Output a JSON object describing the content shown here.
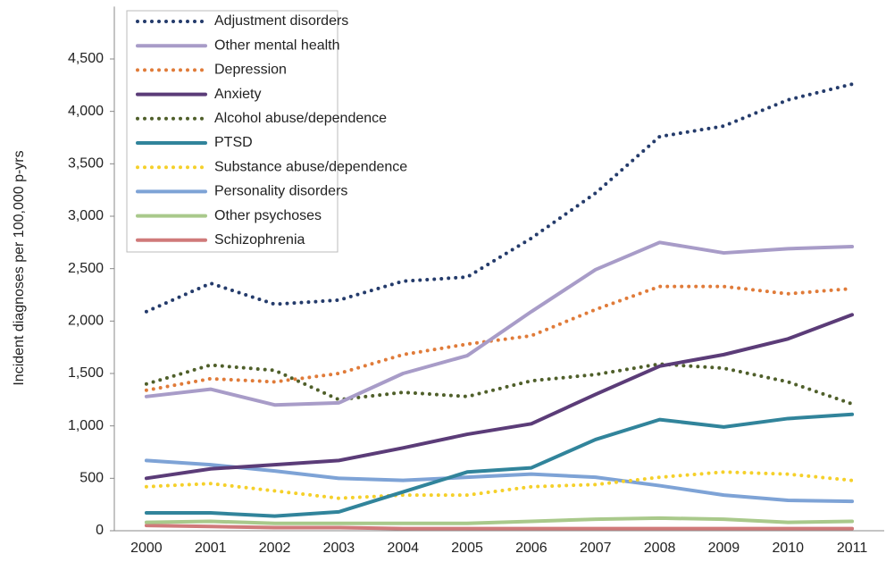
{
  "chart_data": {
    "type": "line",
    "y_label": "Incident diagnoses per 100,000 p-yrs",
    "categories": [
      "2000",
      "2001",
      "2002",
      "2003",
      "2004",
      "2005",
      "2006",
      "2007",
      "2008",
      "2009",
      "2010",
      "2011"
    ],
    "ylim": [
      0,
      5000
    ],
    "yticks": [
      0,
      500,
      {
        "value": 1000,
        "label": "1,000"
      },
      {
        "value": 1500,
        "label": "1,500"
      },
      {
        "value": 2000,
        "label": "2,000"
      },
      {
        "value": 2500,
        "label": "2,500"
      },
      {
        "value": 3000,
        "label": "3,000"
      },
      {
        "value": 3500,
        "label": "3,500"
      },
      {
        "value": 4000,
        "label": "4,000"
      },
      {
        "value": 4500,
        "label": "4,500"
      }
    ],
    "series": [
      {
        "name": "Adjustment disorders",
        "color": "#243b6b",
        "style": "dotted",
        "values": [
          2090,
          2360,
          2160,
          2200,
          2380,
          2420,
          2790,
          3220,
          3760,
          3860,
          4110,
          4260
        ]
      },
      {
        "name": "Other mental health",
        "color": "#a89cc8",
        "style": "solid",
        "values": [
          1280,
          1350,
          1200,
          1220,
          1500,
          1670,
          2090,
          2490,
          2750,
          2650,
          2690,
          2710
        ]
      },
      {
        "name": "Depression",
        "color": "#e07b39",
        "style": "dotted",
        "values": [
          1340,
          1450,
          1420,
          1500,
          1680,
          1780,
          1860,
          2110,
          2330,
          2330,
          2260,
          2310
        ]
      },
      {
        "name": "Anxiety",
        "color": "#5b3c78",
        "style": "solid",
        "values": [
          500,
          590,
          630,
          670,
          790,
          920,
          1020,
          1300,
          1570,
          1680,
          1830,
          2060
        ]
      },
      {
        "name": "Alcohol abuse/dependence",
        "color": "#4f5f2a",
        "style": "dotted",
        "values": [
          1400,
          1580,
          1530,
          1250,
          1320,
          1280,
          1430,
          1490,
          1590,
          1550,
          1420,
          1210
        ]
      },
      {
        "name": "PTSD",
        "color": "#31849b",
        "style": "solid",
        "values": [
          170,
          170,
          140,
          180,
          370,
          560,
          600,
          870,
          1060,
          990,
          1070,
          1110
        ]
      },
      {
        "name": "Substance abuse/dependence",
        "color": "#f5d02a",
        "style": "dotted",
        "values": [
          420,
          450,
          380,
          310,
          340,
          340,
          420,
          440,
          510,
          560,
          540,
          480
        ]
      },
      {
        "name": "Personality disorders",
        "color": "#7ea3d6",
        "style": "solid",
        "values": [
          670,
          630,
          570,
          500,
          480,
          510,
          540,
          510,
          430,
          340,
          290,
          280
        ]
      },
      {
        "name": "Other psychoses",
        "color": "#a9c98b",
        "style": "solid",
        "values": [
          80,
          90,
          70,
          70,
          70,
          70,
          90,
          110,
          120,
          110,
          80,
          90
        ]
      },
      {
        "name": "Schizophrenia",
        "color": "#d07a7a",
        "style": "solid",
        "values": [
          50,
          40,
          30,
          30,
          20,
          20,
          20,
          20,
          20,
          20,
          20,
          20
        ]
      }
    ]
  }
}
